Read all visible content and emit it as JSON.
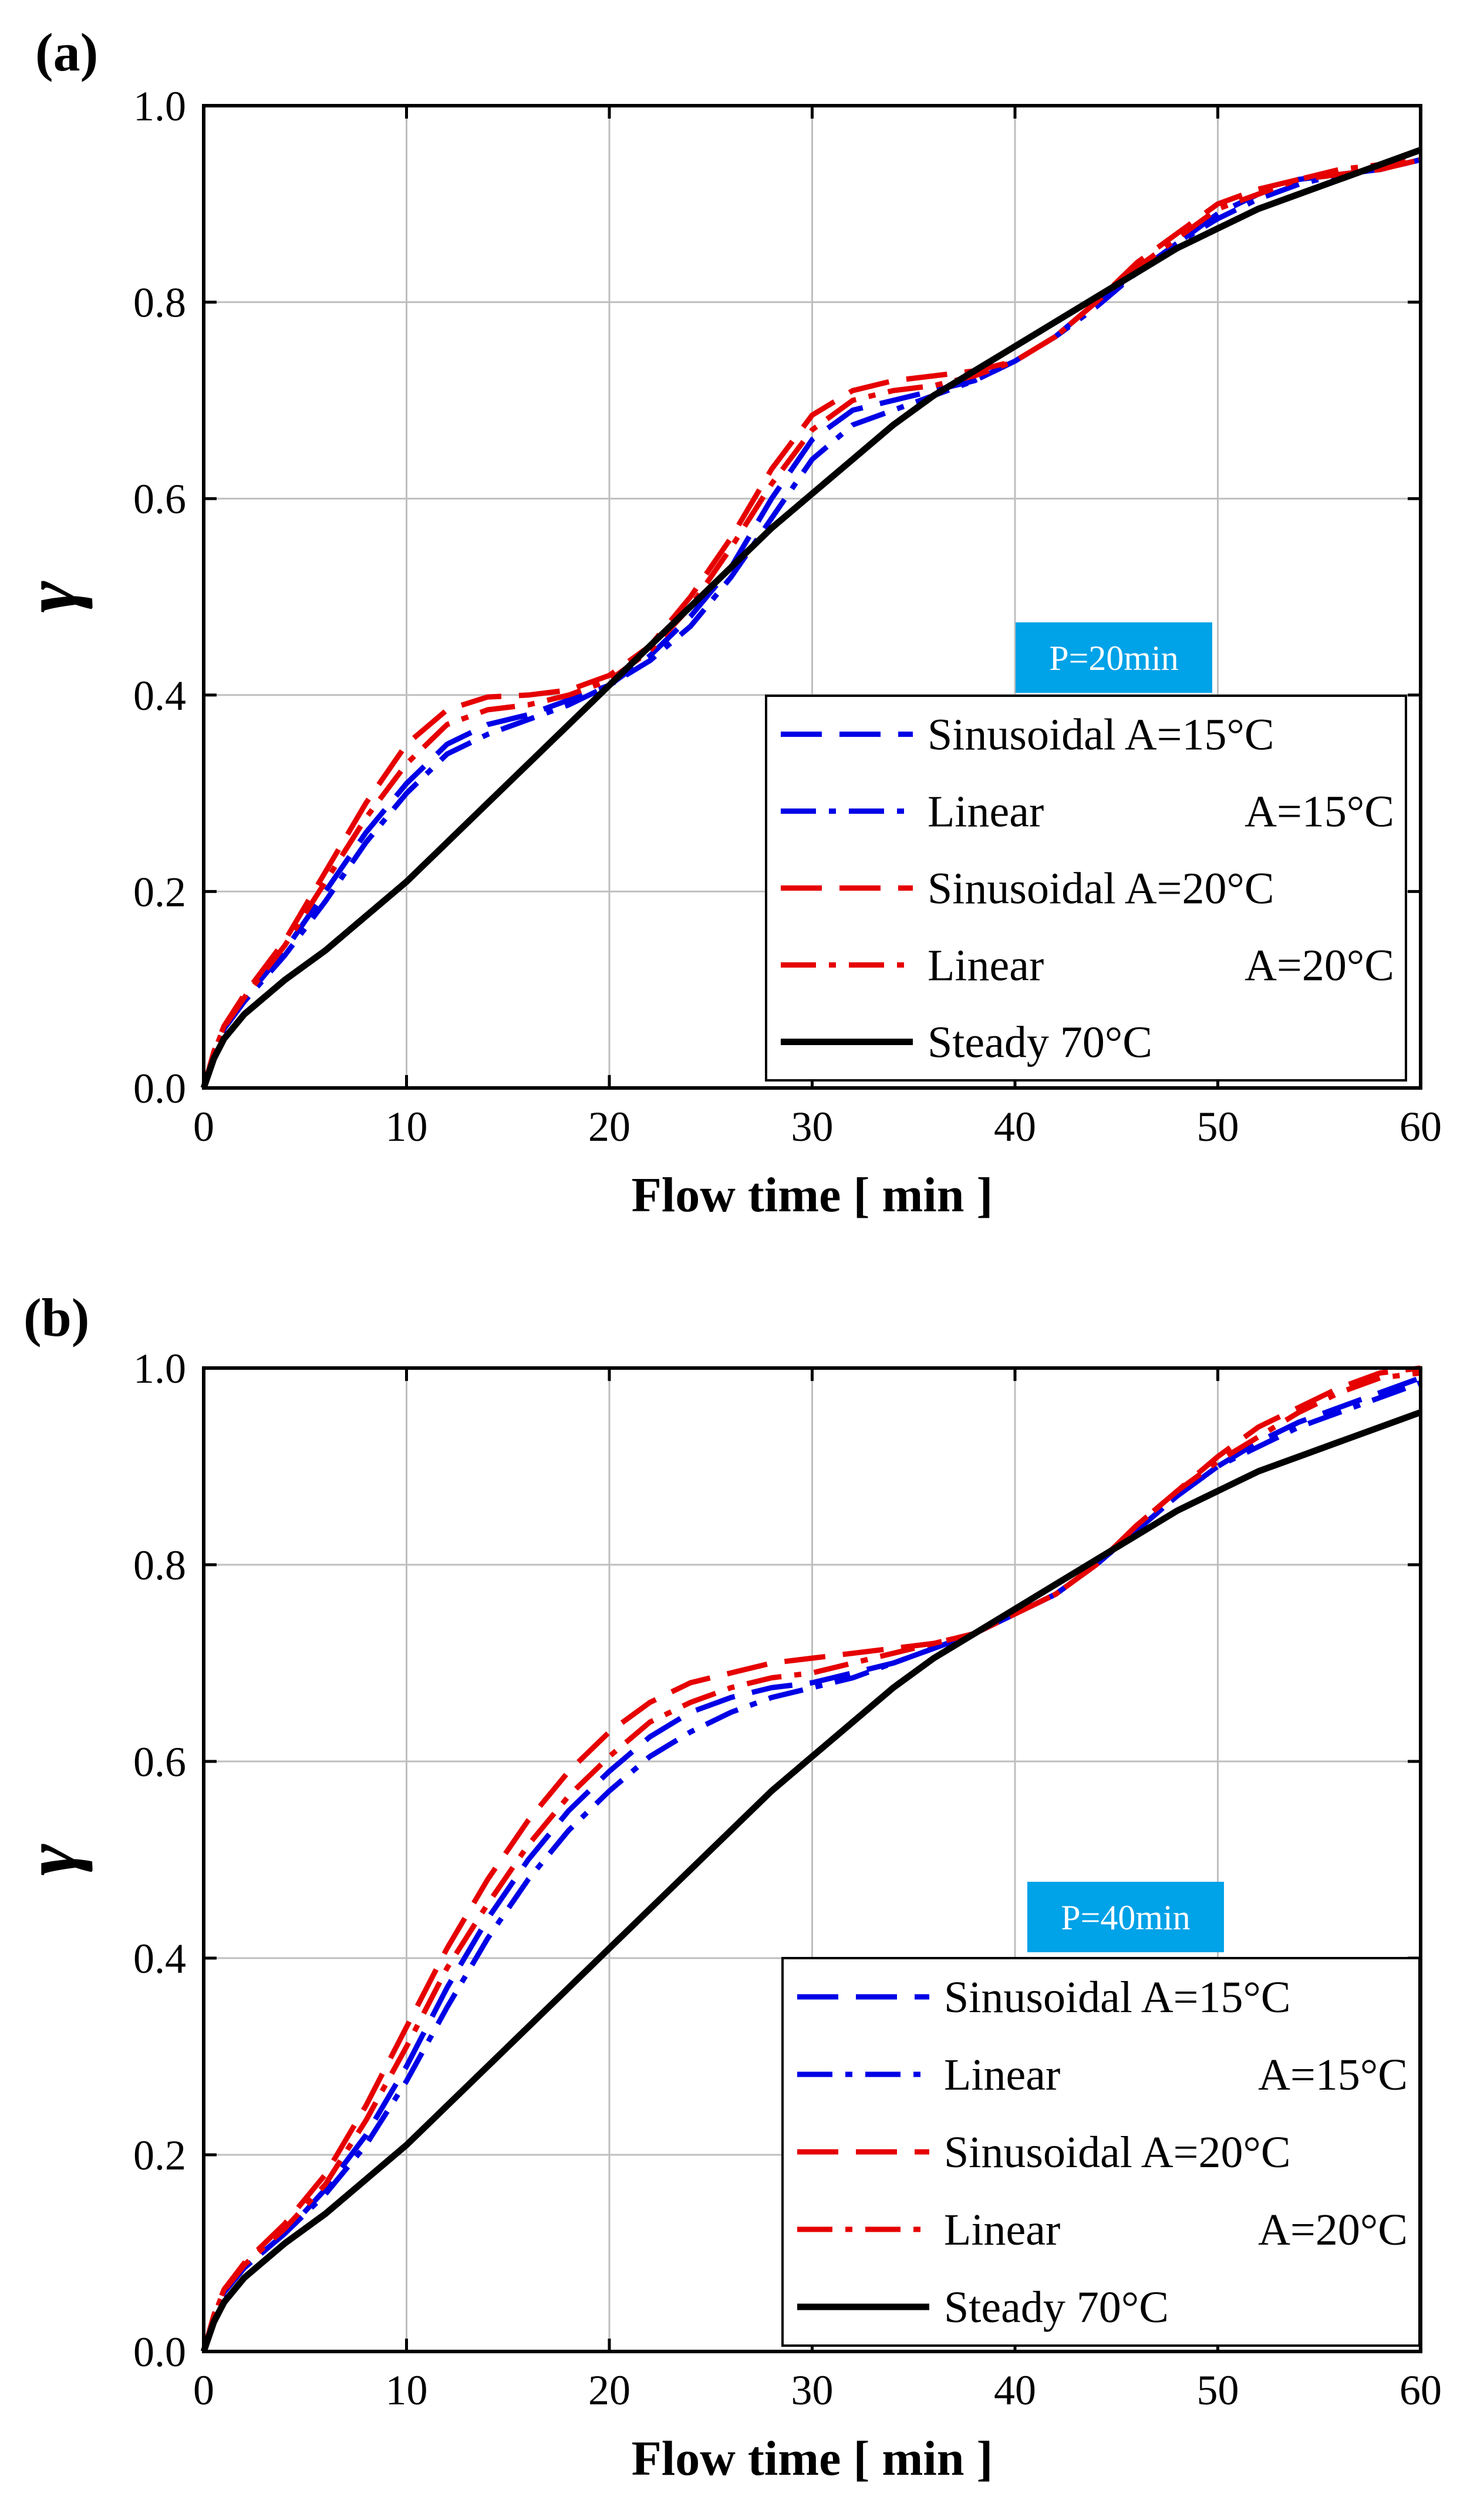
{
  "chart_data": [
    {
      "type": "line",
      "panel_label": "(a)",
      "annotation": "P=20min",
      "xlabel": "Flow time [ min ]",
      "ylabel": "γ",
      "xlim": [
        0,
        60
      ],
      "ylim": [
        0,
        1.0
      ],
      "x_ticks": [
        "0",
        "10",
        "20",
        "30",
        "40",
        "50",
        "60"
      ],
      "y_ticks": [
        "0.0",
        "0.2",
        "0.4",
        "0.6",
        "0.8",
        "1.0"
      ],
      "grid": true,
      "legend_position": "bottom-right",
      "series": [
        {
          "name": "Sinusoidal A=15°C",
          "legend_label": "Sinusoidal A=15°C",
          "color": "#0000e6",
          "dash": "dash",
          "x": [
            0,
            0.5,
            1,
            2,
            4,
            6,
            8,
            10,
            12,
            14,
            16,
            18,
            20,
            22,
            24,
            26,
            28,
            30,
            32,
            34,
            36,
            38,
            40,
            42,
            44,
            46,
            48,
            50,
            52,
            54,
            56,
            58,
            60
          ],
          "y": [
            0,
            0.035,
            0.06,
            0.09,
            0.14,
            0.2,
            0.26,
            0.31,
            0.35,
            0.37,
            0.38,
            0.395,
            0.41,
            0.44,
            0.48,
            0.53,
            0.6,
            0.66,
            0.69,
            0.7,
            0.71,
            0.72,
            0.74,
            0.765,
            0.8,
            0.83,
            0.86,
            0.89,
            0.91,
            0.925,
            0.93,
            0.935,
            0.945
          ]
        },
        {
          "name": "Linear A=15°C",
          "legend_label": "Linear",
          "legend_suffix": "A=15°C",
          "color": "#0000e6",
          "dash": "dashdot",
          "x": [
            0,
            0.5,
            1,
            2,
            4,
            6,
            8,
            10,
            12,
            14,
            16,
            18,
            20,
            22,
            24,
            26,
            28,
            30,
            32,
            34,
            36,
            38,
            40,
            42,
            44,
            46,
            48,
            50,
            52,
            54,
            56,
            58,
            60
          ],
          "y": [
            0,
            0.035,
            0.06,
            0.088,
            0.135,
            0.19,
            0.25,
            0.3,
            0.34,
            0.36,
            0.375,
            0.39,
            0.41,
            0.435,
            0.47,
            0.52,
            0.58,
            0.64,
            0.675,
            0.69,
            0.705,
            0.72,
            0.74,
            0.765,
            0.795,
            0.83,
            0.86,
            0.885,
            0.905,
            0.92,
            0.93,
            0.935,
            0.945
          ]
        },
        {
          "name": "Sinusoidal A=20°C",
          "legend_label": "Sinusoidal A=20°C",
          "color": "#e60000",
          "dash": "dash",
          "x": [
            0,
            0.5,
            1,
            2,
            4,
            6,
            8,
            10,
            12,
            14,
            16,
            18,
            20,
            22,
            24,
            26,
            28,
            30,
            32,
            34,
            36,
            38,
            40,
            42,
            44,
            46,
            48,
            50,
            52,
            54,
            56,
            58,
            60
          ],
          "y": [
            0,
            0.037,
            0.063,
            0.095,
            0.15,
            0.22,
            0.29,
            0.35,
            0.385,
            0.398,
            0.4,
            0.405,
            0.42,
            0.45,
            0.5,
            0.56,
            0.63,
            0.685,
            0.71,
            0.72,
            0.725,
            0.73,
            0.74,
            0.765,
            0.8,
            0.84,
            0.87,
            0.9,
            0.915,
            0.925,
            0.93,
            0.935,
            0.945
          ]
        },
        {
          "name": "Linear A=20°C",
          "legend_label": "Linear",
          "legend_suffix": "A=20°C",
          "color": "#e60000",
          "dash": "dashdot",
          "x": [
            0,
            0.5,
            1,
            2,
            4,
            6,
            8,
            10,
            12,
            14,
            16,
            18,
            20,
            22,
            24,
            26,
            28,
            30,
            32,
            34,
            36,
            38,
            40,
            42,
            44,
            46,
            48,
            50,
            52,
            54,
            56,
            58,
            60
          ],
          "y": [
            0,
            0.036,
            0.062,
            0.092,
            0.145,
            0.21,
            0.275,
            0.33,
            0.37,
            0.385,
            0.39,
            0.4,
            0.415,
            0.445,
            0.49,
            0.55,
            0.615,
            0.67,
            0.7,
            0.71,
            0.715,
            0.725,
            0.74,
            0.765,
            0.8,
            0.835,
            0.865,
            0.895,
            0.91,
            0.925,
            0.935,
            0.94,
            0.945
          ]
        },
        {
          "name": "Steady 70°C",
          "legend_label": "Steady 70°C",
          "color": "#000000",
          "dash": "solid",
          "x": [
            0,
            0.5,
            1,
            2,
            4,
            6,
            8,
            10,
            12,
            14,
            16,
            18,
            20,
            22,
            24,
            26,
            28,
            30,
            32,
            34,
            36,
            38,
            40,
            42,
            44,
            46,
            48,
            50,
            52,
            54,
            56,
            58,
            60
          ],
          "y": [
            0,
            0.03,
            0.05,
            0.075,
            0.11,
            0.14,
            0.175,
            0.21,
            0.25,
            0.29,
            0.33,
            0.37,
            0.41,
            0.45,
            0.49,
            0.53,
            0.57,
            0.605,
            0.64,
            0.675,
            0.705,
            0.73,
            0.755,
            0.78,
            0.805,
            0.83,
            0.855,
            0.875,
            0.895,
            0.91,
            0.925,
            0.94,
            0.955
          ]
        }
      ]
    },
    {
      "type": "line",
      "panel_label": "(b)",
      "annotation": "P=40min",
      "xlabel": "Flow time [ min ]",
      "ylabel": "γ",
      "xlim": [
        0,
        60
      ],
      "ylim": [
        0,
        1.0
      ],
      "x_ticks": [
        "0",
        "10",
        "20",
        "30",
        "40",
        "50",
        "60"
      ],
      "y_ticks": [
        "0.0",
        "0.2",
        "0.4",
        "0.6",
        "0.8",
        "1.0"
      ],
      "grid": true,
      "legend_position": "bottom-right",
      "series": [
        {
          "name": "Sinusoidal A=15°C",
          "legend_label": "Sinusoidal A=15°C",
          "color": "#0000e6",
          "dash": "dash",
          "x": [
            0,
            0.5,
            1,
            2,
            4,
            6,
            8,
            10,
            12,
            14,
            16,
            18,
            20,
            22,
            24,
            26,
            28,
            30,
            32,
            34,
            36,
            38,
            40,
            42,
            44,
            46,
            48,
            50,
            52,
            54,
            56,
            58,
            60
          ],
          "y": [
            0,
            0.035,
            0.06,
            0.085,
            0.12,
            0.165,
            0.22,
            0.29,
            0.37,
            0.44,
            0.5,
            0.55,
            0.59,
            0.625,
            0.65,
            0.665,
            0.675,
            0.68,
            0.69,
            0.7,
            0.715,
            0.73,
            0.75,
            0.77,
            0.8,
            0.835,
            0.87,
            0.9,
            0.925,
            0.945,
            0.96,
            0.975,
            0.99
          ]
        },
        {
          "name": "Linear A=15°C",
          "legend_label": "Linear",
          "legend_suffix": "A=15°C",
          "color": "#0000e6",
          "dash": "dashdot",
          "x": [
            0,
            0.5,
            1,
            2,
            4,
            6,
            8,
            10,
            12,
            14,
            16,
            18,
            20,
            22,
            24,
            26,
            28,
            30,
            32,
            34,
            36,
            38,
            40,
            42,
            44,
            46,
            48,
            50,
            52,
            54,
            56,
            58,
            60
          ],
          "y": [
            0,
            0.035,
            0.06,
            0.085,
            0.12,
            0.16,
            0.21,
            0.275,
            0.35,
            0.42,
            0.48,
            0.53,
            0.57,
            0.605,
            0.63,
            0.65,
            0.665,
            0.675,
            0.685,
            0.7,
            0.715,
            0.73,
            0.75,
            0.77,
            0.8,
            0.835,
            0.87,
            0.9,
            0.92,
            0.94,
            0.955,
            0.97,
            0.985
          ]
        },
        {
          "name": "Sinusoidal A=20°C",
          "legend_label": "Sinusoidal A=20°C",
          "color": "#e60000",
          "dash": "dash",
          "x": [
            0,
            0.5,
            1,
            2,
            4,
            6,
            8,
            10,
            12,
            14,
            16,
            18,
            20,
            22,
            24,
            26,
            28,
            30,
            32,
            34,
            36,
            38,
            40,
            42,
            44,
            46,
            48,
            50,
            52,
            54,
            56,
            58,
            60
          ],
          "y": [
            0,
            0.037,
            0.063,
            0.09,
            0.13,
            0.18,
            0.25,
            0.33,
            0.41,
            0.48,
            0.54,
            0.59,
            0.63,
            0.66,
            0.68,
            0.69,
            0.7,
            0.705,
            0.71,
            0.715,
            0.72,
            0.73,
            0.75,
            0.77,
            0.8,
            0.84,
            0.875,
            0.91,
            0.94,
            0.96,
            0.98,
            0.995,
            1.0
          ]
        },
        {
          "name": "Linear A=20°C",
          "legend_label": "Linear",
          "legend_suffix": "A=20°C",
          "color": "#e60000",
          "dash": "dashdot",
          "x": [
            0,
            0.5,
            1,
            2,
            4,
            6,
            8,
            10,
            12,
            14,
            16,
            18,
            20,
            22,
            24,
            26,
            28,
            30,
            32,
            34,
            36,
            38,
            40,
            42,
            44,
            46,
            48,
            50,
            52,
            54,
            56,
            58,
            60
          ],
          "y": [
            0,
            0.036,
            0.062,
            0.088,
            0.125,
            0.17,
            0.235,
            0.31,
            0.39,
            0.455,
            0.515,
            0.565,
            0.605,
            0.64,
            0.66,
            0.675,
            0.685,
            0.69,
            0.7,
            0.71,
            0.72,
            0.73,
            0.75,
            0.77,
            0.8,
            0.84,
            0.875,
            0.905,
            0.93,
            0.955,
            0.975,
            0.99,
            0.995
          ]
        },
        {
          "name": "Steady 70°C",
          "legend_label": "Steady 70°C",
          "color": "#000000",
          "dash": "solid",
          "x": [
            0,
            0.5,
            1,
            2,
            4,
            6,
            8,
            10,
            12,
            14,
            16,
            18,
            20,
            22,
            24,
            26,
            28,
            30,
            32,
            34,
            36,
            38,
            40,
            42,
            44,
            46,
            48,
            50,
            52,
            54,
            56,
            58,
            60
          ],
          "y": [
            0,
            0.03,
            0.05,
            0.075,
            0.11,
            0.14,
            0.175,
            0.21,
            0.25,
            0.29,
            0.33,
            0.37,
            0.41,
            0.45,
            0.49,
            0.53,
            0.57,
            0.605,
            0.64,
            0.675,
            0.705,
            0.73,
            0.755,
            0.78,
            0.805,
            0.83,
            0.855,
            0.875,
            0.895,
            0.91,
            0.925,
            0.94,
            0.955
          ]
        }
      ]
    }
  ],
  "theme": {
    "grid_color": "#bfbfbf",
    "badge_color": "#00a2e8",
    "axis_color": "#000000"
  }
}
